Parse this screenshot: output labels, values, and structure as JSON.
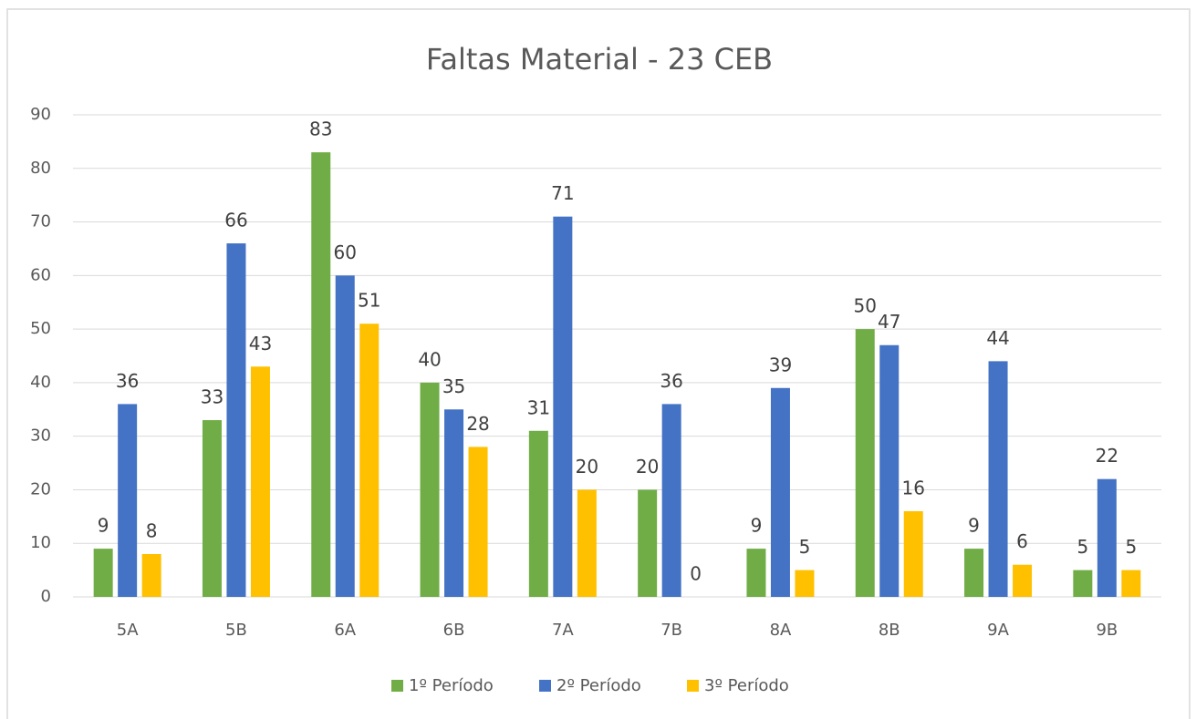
{
  "chart_data": {
    "type": "bar",
    "title": "Faltas Material - 23 CEB",
    "categories": [
      "5A",
      "5B",
      "6A",
      "6B",
      "7A",
      "7B",
      "8A",
      "8B",
      "9A",
      "9B"
    ],
    "series": [
      {
        "name": "1º Período",
        "color": "#70ad47",
        "values": [
          9,
          33,
          83,
          40,
          31,
          20,
          9,
          50,
          9,
          5
        ]
      },
      {
        "name": "2º Período",
        "color": "#4472c4",
        "values": [
          36,
          66,
          60,
          35,
          71,
          36,
          39,
          47,
          44,
          22
        ]
      },
      {
        "name": "3º Período",
        "color": "#ffc000",
        "values": [
          8,
          43,
          51,
          28,
          20,
          0,
          5,
          16,
          6,
          5
        ]
      }
    ],
    "ylim": [
      0,
      90
    ],
    "yticks": [
      0,
      10,
      20,
      30,
      40,
      50,
      60,
      70,
      80,
      90
    ],
    "grid": true,
    "legend": "bottom"
  }
}
